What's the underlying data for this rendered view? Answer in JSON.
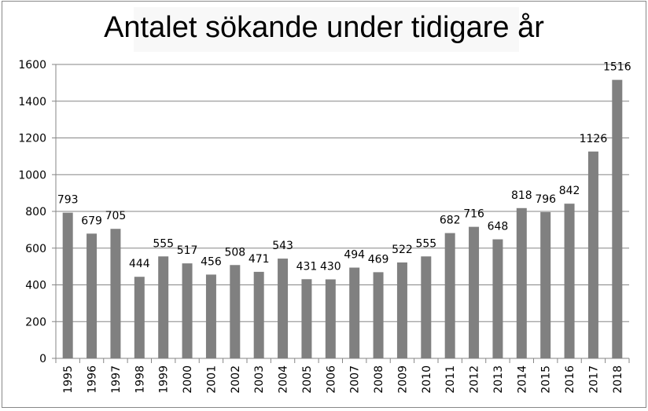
{
  "chart_data": {
    "type": "bar",
    "title": "Antalet sökande under tidigare år",
    "xlabel": "",
    "ylabel": "",
    "ylim": [
      0,
      1600
    ],
    "yticks": [
      0,
      200,
      400,
      600,
      800,
      1000,
      1200,
      1400,
      1600
    ],
    "grid": true,
    "categories": [
      "1995",
      "1996",
      "1997",
      "1998",
      "1999",
      "2000",
      "2001",
      "2002",
      "2003",
      "2004",
      "2005",
      "2006",
      "2007",
      "2008",
      "2009",
      "2010",
      "2011",
      "2012",
      "2013",
      "2014",
      "2015",
      "2016",
      "2017",
      "2018"
    ],
    "values": [
      793,
      679,
      705,
      444,
      555,
      517,
      456,
      508,
      471,
      543,
      431,
      430,
      494,
      469,
      522,
      555,
      682,
      716,
      648,
      818,
      796,
      842,
      1126,
      1516
    ],
    "bar_color": "#808080"
  }
}
